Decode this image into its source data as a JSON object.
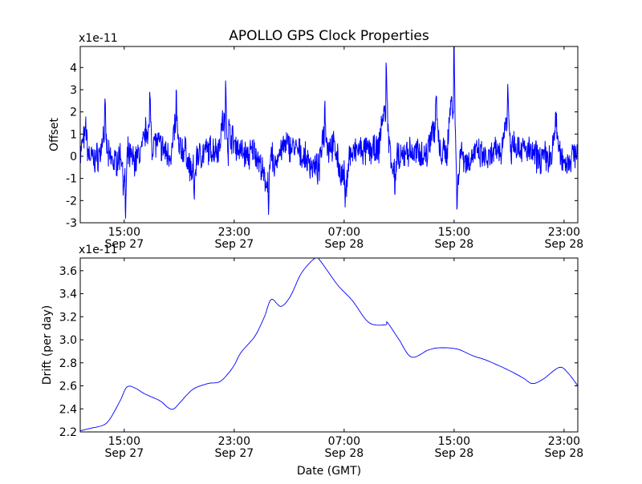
{
  "title": "APOLLO GPS Clock Properties",
  "colors": {
    "line": "#0000ff",
    "axes": "#000000",
    "background": "#ffffff"
  },
  "chart_data": [
    {
      "type": "line",
      "name": "offset",
      "ylabel": "Offset",
      "xlabel": "",
      "y_multiplier_label": "x1e-11",
      "x_units": "hours since Sep 27 00:00 GMT",
      "xlim": [
        11.8,
        48.0
      ],
      "ylim": [
        -3,
        4.95
      ],
      "yticks": [
        -3,
        -2,
        -1,
        0,
        1,
        2,
        3,
        4
      ],
      "xticks": [
        {
          "value": 15,
          "time": "15:00",
          "date": "Sep 27"
        },
        {
          "value": 23,
          "time": "23:00",
          "date": "Sep 27"
        },
        {
          "value": 31,
          "time": "07:00",
          "date": "Sep 28"
        },
        {
          "value": 39,
          "time": "15:00",
          "date": "Sep 28"
        },
        {
          "value": 47,
          "time": "23:00",
          "date": "Sep 28"
        }
      ],
      "series": [
        {
          "name": "Offset",
          "x": [
            11.8,
            12.2,
            12.4,
            12.8,
            13.3,
            13.6,
            13.8,
            14.3,
            14.8,
            15.1,
            15.3,
            15.8,
            16.3,
            16.9,
            17.1,
            17.6,
            18.1,
            18.5,
            18.8,
            19.0,
            19.5,
            20.1,
            20.4,
            20.9,
            21.4,
            21.9,
            22.4,
            22.6,
            23.0,
            23.5,
            24.0,
            24.5,
            25.0,
            25.5,
            25.8,
            26.3,
            26.8,
            27.3,
            27.8,
            28.3,
            28.8,
            29.2,
            29.6,
            29.9,
            30.4,
            31.1,
            31.5,
            32.0,
            32.5,
            33.0,
            33.5,
            34.1,
            34.3,
            34.7,
            35.0,
            35.5,
            36.0,
            36.5,
            37.0,
            37.7,
            38.0,
            38.5,
            39.0,
            39.2,
            39.5,
            40.0,
            40.5,
            41.0,
            41.5,
            42.0,
            42.5,
            42.9,
            43.2,
            43.7,
            44.2,
            44.7,
            45.2,
            45.7,
            46.1,
            46.4,
            46.7,
            47.2,
            47.6,
            48.0
          ],
          "y": [
            0.0,
            1.5,
            0.1,
            -0.2,
            0.2,
            2.0,
            0.0,
            -0.3,
            0.1,
            -2.6,
            0.0,
            -0.2,
            0.3,
            2.4,
            0.7,
            0.5,
            0.1,
            0.2,
            2.6,
            0.4,
            0.2,
            -1.5,
            0.0,
            0.2,
            0.3,
            0.4,
            3.0,
            1.2,
            0.6,
            0.2,
            0.0,
            0.3,
            -0.6,
            -2.1,
            -0.6,
            0.2,
            0.5,
            0.4,
            0.1,
            -0.2,
            -0.5,
            -0.6,
            2.2,
            0.6,
            0.3,
            -2.0,
            0.0,
            0.3,
            0.2,
            0.3,
            0.2,
            3.8,
            0.8,
            -1.5,
            -0.4,
            0.3,
            0.1,
            0.2,
            0.0,
            2.5,
            0.1,
            0.2,
            4.9,
            -2.5,
            0.2,
            -0.3,
            0.2,
            0.0,
            -0.2,
            0.2,
            0.3,
            3.0,
            0.8,
            0.4,
            0.3,
            0.1,
            -0.1,
            0.0,
            -0.2,
            2.0,
            0.0,
            -0.3,
            0.0,
            0.4
          ]
        }
      ]
    },
    {
      "type": "line",
      "name": "drift",
      "ylabel": "Drift (per day)",
      "xlabel": "Date (GMT)",
      "y_multiplier_label": "x1e-11",
      "x_units": "hours since Sep 27 00:00 GMT",
      "xlim": [
        11.8,
        48.0
      ],
      "ylim": [
        2.2,
        3.71
      ],
      "yticks": [
        2.2,
        2.4,
        2.6,
        2.8,
        3.0,
        3.2,
        3.4,
        3.6
      ],
      "xticks": [
        {
          "value": 15,
          "time": "15:00",
          "date": "Sep 27"
        },
        {
          "value": 23,
          "time": "23:00",
          "date": "Sep 27"
        },
        {
          "value": 31,
          "time": "07:00",
          "date": "Sep 28"
        },
        {
          "value": 39,
          "time": "15:00",
          "date": "Sep 28"
        },
        {
          "value": 47,
          "time": "23:00",
          "date": "Sep 28"
        }
      ],
      "series": [
        {
          "name": "Drift",
          "x": [
            11.8,
            12.5,
            13.5,
            14.0,
            14.7,
            15.2,
            15.8,
            16.5,
            17.6,
            18.2,
            18.6,
            19.1,
            20.0,
            21.1,
            22.0,
            22.9,
            23.5,
            24.5,
            25.2,
            25.7,
            26.4,
            27.1,
            27.9,
            28.9,
            29.3,
            30.5,
            31.6,
            32.8,
            34.0,
            34.15,
            35.0,
            35.9,
            37.1,
            37.9,
            39.2,
            40.4,
            41.4,
            42.9,
            44.0,
            44.7,
            45.5,
            46.65,
            47.3,
            48.0
          ],
          "y": [
            2.21,
            2.23,
            2.26,
            2.32,
            2.47,
            2.59,
            2.58,
            2.53,
            2.47,
            2.41,
            2.4,
            2.46,
            2.57,
            2.62,
            2.64,
            2.76,
            2.89,
            3.03,
            3.2,
            3.35,
            3.29,
            3.38,
            3.58,
            3.71,
            3.68,
            3.48,
            3.34,
            3.15,
            3.13,
            3.15,
            3.0,
            2.85,
            2.91,
            2.93,
            2.92,
            2.86,
            2.82,
            2.74,
            2.67,
            2.62,
            2.66,
            2.76,
            2.71,
            2.6
          ]
        }
      ]
    }
  ]
}
